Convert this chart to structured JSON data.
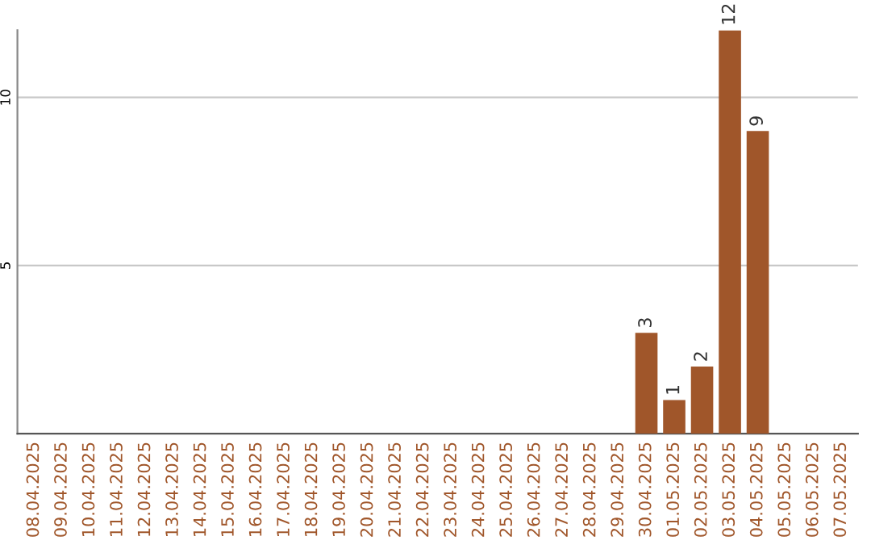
{
  "chart_data": {
    "type": "bar",
    "categories": [
      "08.04.2025",
      "09.04.2025",
      "10.04.2025",
      "11.04.2025",
      "12.04.2025",
      "13.04.2025",
      "14.04.2025",
      "15.04.2025",
      "16.04.2025",
      "17.04.2025",
      "18.04.2025",
      "19.04.2025",
      "20.04.2025",
      "21.04.2025",
      "22.04.2025",
      "23.04.2025",
      "24.04.2025",
      "25.04.2025",
      "26.04.2025",
      "27.04.2025",
      "28.04.2025",
      "29.04.2025",
      "30.04.2025",
      "01.05.2025",
      "02.05.2025",
      "03.05.2025",
      "04.05.2025",
      "05.05.2025",
      "06.05.2025",
      "07.05.2025"
    ],
    "values": [
      0,
      0,
      0,
      0,
      0,
      0,
      0,
      0,
      0,
      0,
      0,
      0,
      0,
      0,
      0,
      0,
      0,
      0,
      0,
      0,
      0,
      0,
      3,
      1,
      2,
      12,
      9,
      0,
      0,
      0
    ],
    "value_labels": [
      null,
      null,
      null,
      null,
      null,
      null,
      null,
      null,
      null,
      null,
      null,
      null,
      null,
      null,
      null,
      null,
      null,
      null,
      null,
      null,
      null,
      null,
      "3",
      "1",
      "2",
      "12",
      "9",
      null,
      null,
      null
    ],
    "color": "#a0562a",
    "ylim": [
      0,
      12
    ],
    "yticks": [
      5,
      10
    ],
    "grid": "y"
  }
}
